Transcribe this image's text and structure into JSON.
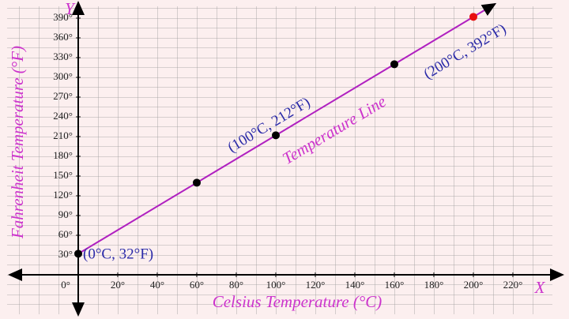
{
  "chart_data": {
    "type": "line",
    "x_label": "Celsius Temperature (°C)",
    "y_label": "Fahrenheit Temperature (°F)",
    "x_axis_name": "X",
    "y_axis_name": "Y",
    "line_label": "Temperature Line",
    "x": [
      0,
      60,
      100,
      160,
      200
    ],
    "series": [
      {
        "color": "#b020c0",
        "values": [
          32,
          140,
          212,
          320,
          392
        ],
        "point_colors": [
          "#000000",
          "#000000",
          "#000000",
          "#000000",
          "#e81010"
        ]
      }
    ],
    "annotations": [
      {
        "text": "(0°C, 32°F)",
        "x": 0,
        "y": 32
      },
      {
        "text": "(100°C, 212°F)",
        "x": 100,
        "y": 212
      },
      {
        "text": "(200°C, 392°F)",
        "x": 200,
        "y": 392
      }
    ],
    "xlim": [
      -36,
      240
    ],
    "ylim": [
      -60,
      408
    ],
    "xticks": [
      {
        "value": 0,
        "label": "0°"
      },
      {
        "value": 20,
        "label": "20°"
      },
      {
        "value": 40,
        "label": "40°"
      },
      {
        "value": 60,
        "label": "60°"
      },
      {
        "value": 80,
        "label": "80°"
      },
      {
        "value": 100,
        "label": "100°"
      },
      {
        "value": 120,
        "label": "120°"
      },
      {
        "value": 140,
        "label": "140°"
      },
      {
        "value": 160,
        "label": "160°"
      },
      {
        "value": 180,
        "label": "180°"
      },
      {
        "value": 200,
        "label": "200°"
      },
      {
        "value": 220,
        "label": "220°"
      }
    ],
    "yticks": [
      {
        "value": 30,
        "label": "30°"
      },
      {
        "value": 60,
        "label": "60°"
      },
      {
        "value": 90,
        "label": "90°"
      },
      {
        "value": 120,
        "label": "120°"
      },
      {
        "value": 150,
        "label": "150°"
      },
      {
        "value": 180,
        "label": "180°"
      },
      {
        "value": 210,
        "label": "210°"
      },
      {
        "value": 240,
        "label": "240°"
      },
      {
        "value": 270,
        "label": "270°"
      },
      {
        "value": 300,
        "label": "300°"
      },
      {
        "value": 330,
        "label": "330°"
      },
      {
        "value": 360,
        "label": "360°"
      },
      {
        "value": 390,
        "label": "390°"
      }
    ],
    "grid": true
  }
}
